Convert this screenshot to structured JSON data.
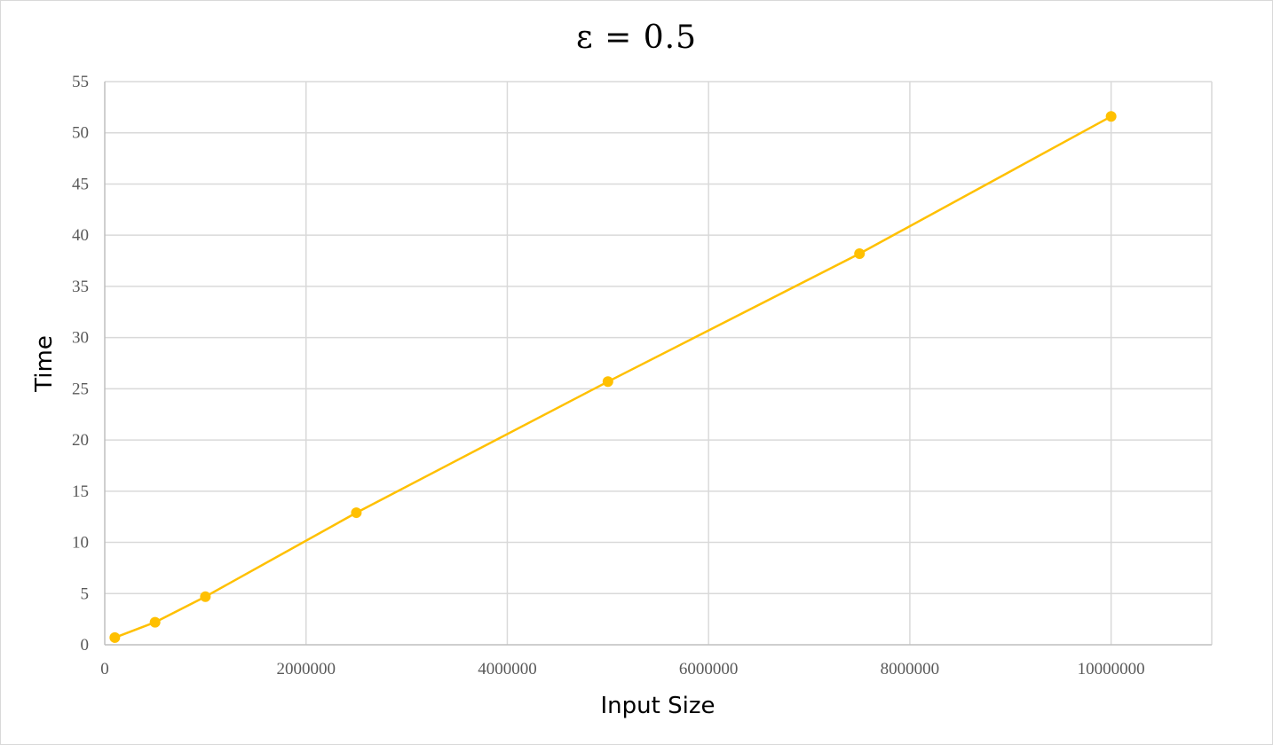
{
  "chart_data": {
    "type": "scatter",
    "title": "ε = 0.5",
    "xlabel": "Input Size",
    "ylabel": "Time",
    "xlim": [
      0,
      11000000
    ],
    "ylim": [
      0,
      55
    ],
    "xticks": [
      0,
      2000000,
      4000000,
      6000000,
      8000000,
      10000000
    ],
    "yticks": [
      0,
      5,
      10,
      15,
      20,
      25,
      30,
      35,
      40,
      45,
      50,
      55
    ],
    "grid": true,
    "series": [
      {
        "x": [
          100000,
          500000,
          1000000,
          2500000,
          5000000,
          7500000,
          10000000
        ],
        "y": [
          0.7,
          2.2,
          4.7,
          12.9,
          25.7,
          38.2,
          51.6
        ],
        "color": "#FFC000",
        "line": true,
        "markers": true
      }
    ]
  }
}
